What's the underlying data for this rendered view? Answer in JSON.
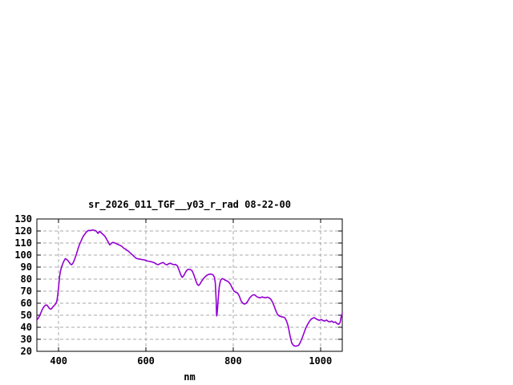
{
  "window": {
    "background": "#ffffff"
  },
  "chart_data": {
    "type": "line",
    "title": "sr_2026_011_TGF__y03_r_rad 08-22-00",
    "xlabel": "nm",
    "ylabel": "",
    "xlim": [
      350,
      1050
    ],
    "ylim": [
      20,
      130
    ],
    "xticks": [
      400,
      600,
      800,
      1000
    ],
    "yticks": [
      20,
      30,
      40,
      50,
      60,
      70,
      80,
      90,
      100,
      110,
      120,
      130
    ],
    "grid": true,
    "legend": "none",
    "line_color": "#9400d3",
    "grid_color": "#aaaaaa",
    "border_color": "#000000",
    "series": [
      {
        "name": "sr_2026_011_TGF__y03_r_rad",
        "points": [
          [
            350,
            46
          ],
          [
            354,
            48
          ],
          [
            358,
            51
          ],
          [
            362,
            54.5
          ],
          [
            366,
            57
          ],
          [
            370,
            58.5
          ],
          [
            373,
            58.5
          ],
          [
            376,
            57
          ],
          [
            379,
            55.5
          ],
          [
            382,
            55
          ],
          [
            385,
            56
          ],
          [
            388,
            57.5
          ],
          [
            391,
            58.5
          ],
          [
            394,
            60
          ],
          [
            396,
            62
          ],
          [
            398,
            67
          ],
          [
            400,
            74
          ],
          [
            402,
            82
          ],
          [
            404,
            86.5
          ],
          [
            406,
            89.5
          ],
          [
            409,
            92.5
          ],
          [
            412,
            95
          ],
          [
            415,
            97
          ],
          [
            418,
            96.5
          ],
          [
            421,
            95.5
          ],
          [
            424,
            94
          ],
          [
            427,
            92.5
          ],
          [
            430,
            92
          ],
          [
            433,
            93.5
          ],
          [
            436,
            96
          ],
          [
            439,
            99
          ],
          [
            442,
            102.5
          ],
          [
            445,
            106
          ],
          [
            448,
            109
          ],
          [
            451,
            111.5
          ],
          [
            454,
            114
          ],
          [
            457,
            116
          ],
          [
            460,
            117.5
          ],
          [
            463,
            119
          ],
          [
            466,
            120
          ],
          [
            469,
            120.5
          ],
          [
            472,
            120.5
          ],
          [
            475,
            120.5
          ],
          [
            478,
            121
          ],
          [
            481,
            120.5
          ],
          [
            484,
            120.5
          ],
          [
            487,
            119.5
          ],
          [
            490,
            118
          ],
          [
            493,
            119.5
          ],
          [
            496,
            119
          ],
          [
            499,
            118
          ],
          [
            502,
            117
          ],
          [
            505,
            116
          ],
          [
            508,
            114.5
          ],
          [
            511,
            112.5
          ],
          [
            514,
            110.5
          ],
          [
            517,
            108.5
          ],
          [
            520,
            109.5
          ],
          [
            523,
            110.5
          ],
          [
            526,
            110.5
          ],
          [
            529,
            110
          ],
          [
            532,
            109.5
          ],
          [
            535,
            109
          ],
          [
            538,
            108.5
          ],
          [
            541,
            108
          ],
          [
            544,
            107.5
          ],
          [
            547,
            106.5
          ],
          [
            550,
            105.5
          ],
          [
            553,
            105
          ],
          [
            556,
            104
          ],
          [
            559,
            103.5
          ],
          [
            562,
            102.5
          ],
          [
            565,
            101.5
          ],
          [
            568,
            100.5
          ],
          [
            571,
            99.5
          ],
          [
            574,
            98.5
          ],
          [
            577,
            97.5
          ],
          [
            580,
            97
          ],
          [
            584,
            96.8
          ],
          [
            588,
            96.5
          ],
          [
            592,
            96.2
          ],
          [
            596,
            96
          ],
          [
            600,
            95.5
          ],
          [
            604,
            95
          ],
          [
            608,
            94.7
          ],
          [
            612,
            94.5
          ],
          [
            616,
            94
          ],
          [
            620,
            93.5
          ],
          [
            624,
            92.5
          ],
          [
            628,
            92
          ],
          [
            632,
            92.8
          ],
          [
            636,
            93.5
          ],
          [
            640,
            93.8
          ],
          [
            644,
            92.5
          ],
          [
            648,
            91.8
          ],
          [
            652,
            92.8
          ],
          [
            656,
            93.2
          ],
          [
            660,
            92.5
          ],
          [
            664,
            92
          ],
          [
            668,
            92.2
          ],
          [
            672,
            91
          ],
          [
            676,
            87.5
          ],
          [
            680,
            83.5
          ],
          [
            683,
            81.5
          ],
          [
            686,
            82.5
          ],
          [
            689,
            84.5
          ],
          [
            692,
            86.5
          ],
          [
            695,
            87.8
          ],
          [
            698,
            88.2
          ],
          [
            702,
            88
          ],
          [
            706,
            86.8
          ],
          [
            710,
            83.5
          ],
          [
            714,
            79
          ],
          [
            718,
            75.5
          ],
          [
            721,
            74.8
          ],
          [
            724,
            76
          ],
          [
            727,
            78
          ],
          [
            731,
            80
          ],
          [
            735,
            81.8
          ],
          [
            739,
            83
          ],
          [
            743,
            83.8
          ],
          [
            747,
            84.2
          ],
          [
            751,
            84
          ],
          [
            754,
            83.5
          ],
          [
            757,
            81.5
          ],
          [
            759,
            77
          ],
          [
            761,
            62
          ],
          [
            762,
            49.5
          ],
          [
            763,
            51
          ],
          [
            764,
            55
          ],
          [
            766,
            65
          ],
          [
            768,
            73.5
          ],
          [
            770,
            77.5
          ],
          [
            772,
            79.5
          ],
          [
            775,
            80.5
          ],
          [
            778,
            80
          ],
          [
            782,
            79
          ],
          [
            786,
            78.5
          ],
          [
            790,
            77.5
          ],
          [
            794,
            75.5
          ],
          [
            798,
            72.5
          ],
          [
            802,
            70
          ],
          [
            806,
            69
          ],
          [
            810,
            68.5
          ],
          [
            814,
            66
          ],
          [
            818,
            62
          ],
          [
            822,
            60
          ],
          [
            826,
            59.3
          ],
          [
            830,
            60
          ],
          [
            834,
            62
          ],
          [
            838,
            64.5
          ],
          [
            842,
            66
          ],
          [
            846,
            67
          ],
          [
            850,
            66.8
          ],
          [
            854,
            65.5
          ],
          [
            858,
            64.8
          ],
          [
            862,
            64.5
          ],
          [
            866,
            65.2
          ],
          [
            870,
            64.8
          ],
          [
            874,
            64.5
          ],
          [
            878,
            65
          ],
          [
            882,
            64.5
          ],
          [
            886,
            63.5
          ],
          [
            890,
            61
          ],
          [
            894,
            57.5
          ],
          [
            898,
            53.5
          ],
          [
            902,
            50.5
          ],
          [
            906,
            49.3
          ],
          [
            910,
            48.8
          ],
          [
            914,
            48.5
          ],
          [
            918,
            48
          ],
          [
            922,
            45.5
          ],
          [
            926,
            41
          ],
          [
            930,
            33.5
          ],
          [
            934,
            27
          ],
          [
            938,
            25
          ],
          [
            942,
            24.3
          ],
          [
            946,
            24.5
          ],
          [
            950,
            25
          ],
          [
            954,
            27.5
          ],
          [
            958,
            31
          ],
          [
            962,
            35
          ],
          [
            966,
            39
          ],
          [
            970,
            42
          ],
          [
            974,
            44.5
          ],
          [
            978,
            46.5
          ],
          [
            982,
            47.5
          ],
          [
            986,
            48
          ],
          [
            990,
            47
          ],
          [
            994,
            46.2
          ],
          [
            998,
            45.8
          ],
          [
            1002,
            46.5
          ],
          [
            1006,
            45.5
          ],
          [
            1010,
            45.2
          ],
          [
            1014,
            46
          ],
          [
            1018,
            44.8
          ],
          [
            1022,
            44.5
          ],
          [
            1026,
            45.2
          ],
          [
            1030,
            44
          ],
          [
            1034,
            44.5
          ],
          [
            1038,
            43
          ],
          [
            1042,
            42.5
          ],
          [
            1045,
            44
          ],
          [
            1047,
            48
          ],
          [
            1050,
            51.5
          ]
        ]
      }
    ]
  }
}
